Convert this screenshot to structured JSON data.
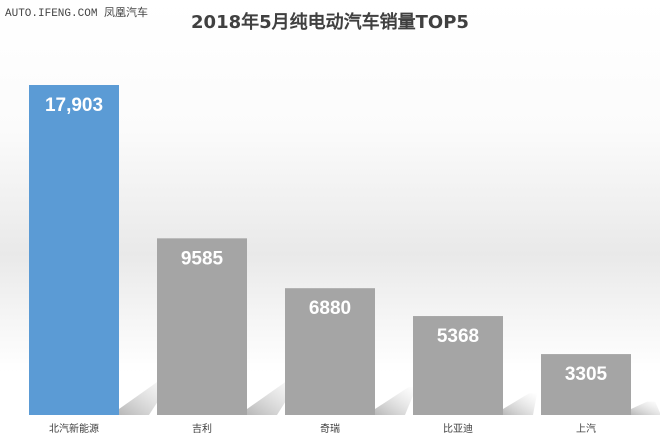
{
  "watermark": "AUTO.IFENG.COM 凤凰汽车",
  "chart_data": {
    "type": "bar",
    "title": "2018年5月纯电动汽车销量TOP5",
    "categories": [
      "北汽新能源",
      "吉利",
      "奇瑞",
      "比亚迪",
      "上汽"
    ],
    "values": [
      17903,
      9585,
      6880,
      5368,
      3305
    ],
    "data_labels": [
      "17,903",
      "9585",
      "6880",
      "5368",
      "3305"
    ],
    "colors": [
      "#5b9bd5",
      "#a5a5a5",
      "#a5a5a5",
      "#a5a5a5",
      "#a5a5a5"
    ],
    "xlabel": "",
    "ylabel": "",
    "grid": false
  }
}
